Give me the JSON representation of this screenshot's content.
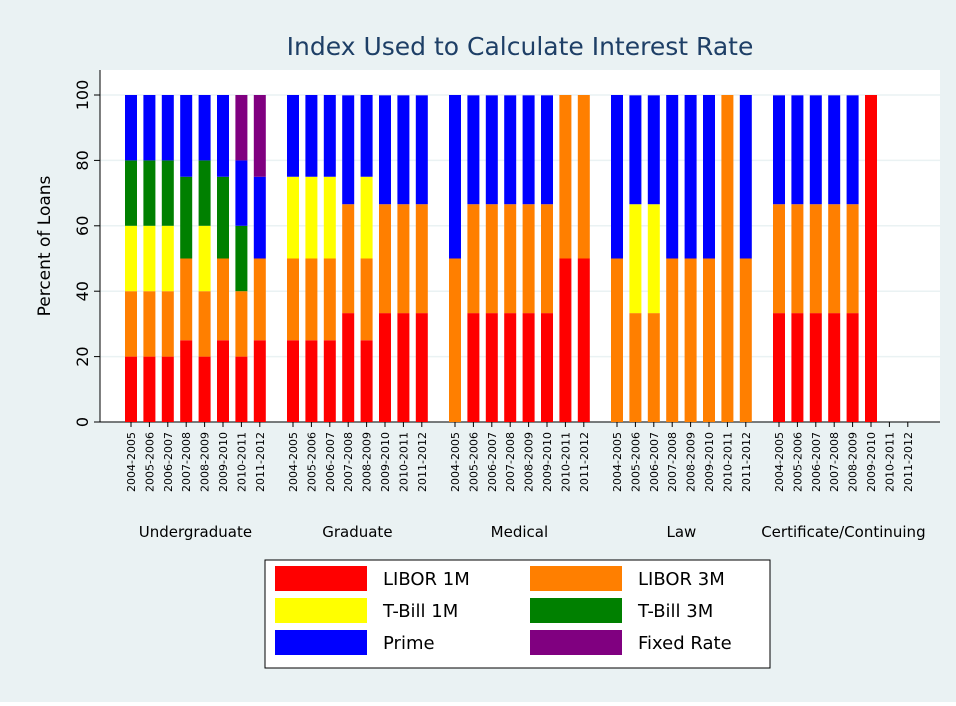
{
  "chart_data": {
    "type": "stacked_bar",
    "title": "Index Used to Calculate Interest Rate",
    "y_label": "Percent of Loans",
    "groups": [
      "Undergraduate",
      "Graduate",
      "Medical",
      "Law",
      "Certificate/Continuing"
    ],
    "categories": [
      "2004-2005",
      "2005-2006",
      "2006-2007",
      "2007-2008",
      "2008-2009",
      "2009-2010",
      "2010-2011",
      "2011-2012",
      "2004-2005",
      "2005-2006",
      "2006-2007",
      "2007-2008",
      "2008-2009",
      "2009-2010",
      "2010-2011",
      "2011-2012",
      "2004-2005",
      "2005-2006",
      "2006-2007",
      "2007-2008",
      "2008-2009",
      "2009-2010",
      "2010-2011",
      "2011-2012",
      "2004-2005",
      "2005-2006",
      "2006-2007",
      "2007-2008",
      "2008-2009",
      "2009-2010",
      "2010-2011",
      "2011-2012",
      "2004-2005",
      "2005-2006",
      "2006-2007",
      "2007-2008",
      "2008-2009",
      "2009-2010",
      "2010-2011",
      "2011-2012"
    ],
    "series": [
      {
        "name": "LIBOR 1M",
        "color": "#ff0000",
        "values": [
          20,
          20,
          20,
          25,
          20,
          25,
          20,
          25,
          25,
          25,
          25,
          33.3,
          25,
          33.3,
          33.3,
          33.3,
          0,
          33.3,
          33.3,
          33.3,
          33.3,
          33.3,
          50,
          50,
          0,
          0,
          0,
          0,
          0,
          0,
          0,
          0,
          33.3,
          33.3,
          33.3,
          33.3,
          33.3,
          100,
          0,
          0
        ]
      },
      {
        "name": "LIBOR 3M",
        "color": "#ff7f00",
        "values": [
          20,
          20,
          20,
          25,
          20,
          25,
          20,
          25,
          25,
          25,
          25,
          33.3,
          25,
          33.3,
          33.3,
          33.3,
          50,
          33.3,
          33.3,
          33.3,
          33.3,
          33.3,
          50,
          50,
          50,
          33.3,
          33.3,
          50,
          50,
          50,
          100,
          50,
          33.3,
          33.3,
          33.3,
          33.3,
          33.3,
          0,
          0,
          0
        ]
      },
      {
        "name": "T-Bill 1M",
        "color": "#ffff00",
        "values": [
          20,
          20,
          20,
          0,
          20,
          0,
          0,
          0,
          25,
          25,
          25,
          0,
          25,
          0,
          0,
          0,
          0,
          0,
          0,
          0,
          0,
          0,
          0,
          0,
          0,
          33.3,
          33.3,
          0,
          0,
          0,
          0,
          0,
          0,
          0,
          0,
          0,
          0,
          0,
          0,
          0
        ]
      },
      {
        "name": "T-Bill 3M",
        "color": "#008000",
        "values": [
          20,
          20,
          20,
          25,
          20,
          25,
          20,
          0,
          0,
          0,
          0,
          0,
          0,
          0,
          0,
          0,
          0,
          0,
          0,
          0,
          0,
          0,
          0,
          0,
          0,
          0,
          0,
          0,
          0,
          0,
          0,
          0,
          0,
          0,
          0,
          0,
          0,
          0,
          0,
          0
        ]
      },
      {
        "name": "Prime",
        "color": "#0000ff",
        "values": [
          20,
          20,
          20,
          25,
          20,
          25,
          20,
          25,
          25,
          25,
          25,
          33.3,
          25,
          33.3,
          33.3,
          33.3,
          50,
          33.3,
          33.3,
          33.3,
          33.3,
          33.3,
          0,
          0,
          50,
          33.3,
          33.3,
          50,
          50,
          50,
          0,
          50,
          33.3,
          33.3,
          33.3,
          33.3,
          33.3,
          0,
          0,
          0
        ]
      },
      {
        "name": "Fixed Rate",
        "color": "#800080",
        "values": [
          0,
          0,
          0,
          0,
          0,
          0,
          20,
          25,
          0,
          0,
          0,
          0,
          0,
          0,
          0,
          0,
          0,
          0,
          0,
          0,
          0,
          0,
          0,
          0,
          0,
          0,
          0,
          0,
          0,
          0,
          0,
          0,
          0,
          0,
          0,
          0,
          0,
          0,
          0,
          0
        ]
      }
    ],
    "ylim": [
      0,
      100
    ],
    "yticks": [
      0,
      20,
      40,
      60,
      80,
      100
    ],
    "grid": true
  }
}
